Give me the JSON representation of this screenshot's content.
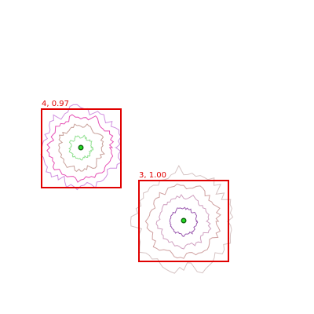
{
  "colors": {
    "box": "#e00000",
    "label": "#e00000",
    "center_dot": "#22dd22",
    "center_ring": "#116611",
    "background": "#ffffff"
  },
  "detections": [
    {
      "label": "4, 0.97",
      "contours": [
        {
          "color": "#d090e0"
        },
        {
          "color": "#e64fb4"
        },
        {
          "color": "#c8a09a"
        },
        {
          "color": "#8fe08f"
        }
      ]
    },
    {
      "label": "3, 1.00",
      "contours": [
        {
          "color": "#d6c4c4"
        },
        {
          "color": "#cfa0a0"
        },
        {
          "color": "#d0a0c0"
        },
        {
          "color": "#9b5ab0"
        }
      ]
    }
  ]
}
